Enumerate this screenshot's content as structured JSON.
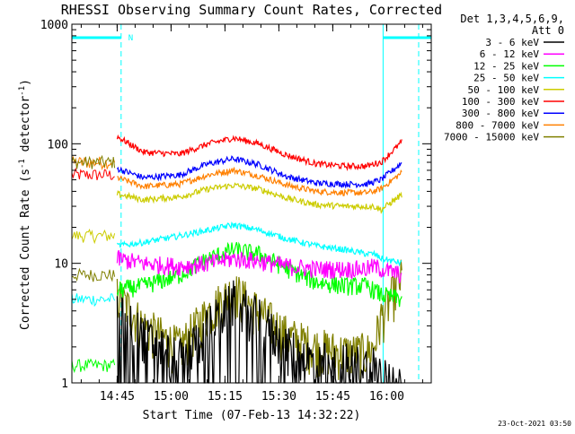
{
  "chart_data": {
    "type": "line",
    "title": "RHESSI Observing Summary Count Rates, Corrected",
    "xlabel": "Start Time (07-Feb-13 14:32:22)",
    "ylabel_main": "Corrected Count Rate (s",
    "ylabel_sup1": "-1",
    "ylabel_mid": " detector",
    "ylabel_sup2": "-1",
    "ylabel_end": ")",
    "y_scale": "log",
    "ylim": [
      1,
      1000
    ],
    "xlim_minutes": [
      0,
      100
    ],
    "x_start": "14:32:22",
    "x_ticks": [
      {
        "label": "14:45",
        "minute": 12.6
      },
      {
        "label": "15:00",
        "minute": 27.6
      },
      {
        "label": "15:15",
        "minute": 42.6
      },
      {
        "label": "15:30",
        "minute": 57.6
      },
      {
        "label": "15:45",
        "minute": 72.6
      },
      {
        "label": "16:00",
        "minute": 87.6
      }
    ],
    "y_ticks": [
      {
        "label": "1",
        "value": 1
      },
      {
        "label": "10",
        "value": 10
      },
      {
        "label": "100",
        "value": 100
      },
      {
        "label": "1000",
        "value": 1000
      }
    ],
    "legend_header_1": "Det 1,3,4,5,6,9,",
    "legend_header_2": "Att 0",
    "legend_position": "right",
    "night_marks": [
      {
        "start": 0,
        "end": 13.7,
        "label": "N"
      },
      {
        "start": 86.6,
        "end": 100,
        "label": ""
      }
    ],
    "series": [
      {
        "name": "3 - 6 keV",
        "color": "#000000",
        "x": [
          12.6,
          20,
          30,
          38,
          45,
          52,
          60,
          68,
          76,
          82,
          84,
          86,
          92
        ],
        "y": [
          4,
          2.5,
          1.6,
          3,
          5,
          3.5,
          2,
          1.5,
          1.5,
          1.4,
          1.5,
          1.2,
          1
        ]
      },
      {
        "name": "6 - 12 keV",
        "color": "#ff00ff",
        "x": [
          12.6,
          20,
          30,
          38,
          45,
          52,
          60,
          68,
          76,
          82,
          84,
          86,
          92
        ],
        "y": [
          11,
          10,
          9.5,
          10,
          11,
          10.5,
          9.5,
          9,
          9,
          9,
          9.5,
          9,
          8
        ]
      },
      {
        "name": "12 - 25 keV",
        "color": "#00ff00",
        "x": [
          12.6,
          20,
          30,
          38,
          45,
          52,
          60,
          68,
          76,
          82,
          84,
          86,
          92
        ],
        "y": [
          6,
          6.5,
          8,
          11,
          13,
          12,
          9,
          7,
          6.5,
          6.5,
          6,
          5.5,
          5
        ]
      },
      {
        "name": "25 - 50 keV",
        "color": "#00ffff",
        "x": [
          12.6,
          20,
          30,
          38,
          45,
          52,
          60,
          68,
          76,
          82,
          84,
          86,
          92
        ],
        "y": [
          14,
          15,
          17,
          19,
          21,
          19,
          16,
          14,
          13,
          12,
          12,
          11,
          10
        ]
      },
      {
        "name": "50 - 100 keV",
        "color": "#cccc00",
        "x": [
          12.6,
          20,
          30,
          38,
          45,
          52,
          60,
          68,
          76,
          82,
          84,
          86,
          92
        ],
        "y": [
          38,
          34,
          36,
          42,
          45,
          42,
          35,
          31,
          30,
          30,
          30,
          28,
          38
        ]
      },
      {
        "name": "100 - 300 keV",
        "color": "#ff0000",
        "x": [
          12.6,
          20,
          30,
          38,
          45,
          52,
          60,
          68,
          76,
          82,
          84,
          86,
          92
        ],
        "y": [
          115,
          85,
          82,
          100,
          112,
          100,
          80,
          68,
          65,
          65,
          68,
          70,
          105
        ]
      },
      {
        "name": "300 - 800 keV",
        "color": "#0000ff",
        "x": [
          12.6,
          20,
          30,
          38,
          45,
          52,
          60,
          68,
          76,
          82,
          84,
          86,
          92
        ],
        "y": [
          62,
          52,
          55,
          68,
          75,
          67,
          53,
          47,
          46,
          46,
          48,
          50,
          70
        ]
      },
      {
        "name": "800 - 7000 keV",
        "color": "#ff8000",
        "x": [
          12.6,
          20,
          30,
          38,
          45,
          52,
          60,
          68,
          76,
          82,
          84,
          86,
          92
        ],
        "y": [
          52,
          44,
          46,
          55,
          60,
          54,
          45,
          40,
          39,
          39,
          40,
          42,
          58
        ]
      },
      {
        "name": "7000 - 15000 keV",
        "color": "#808000",
        "x": [
          12.6,
          20,
          30,
          38,
          45,
          52,
          60,
          68,
          76,
          82,
          84,
          86,
          92
        ],
        "y": [
          5.5,
          3,
          2,
          4,
          6,
          4,
          2.5,
          2,
          1.8,
          1.8,
          2,
          3.5,
          8
        ]
      }
    ],
    "night_series": [
      {
        "color": "#ff0000",
        "x": [
          0,
          12
        ],
        "y": [
          55,
          55
        ]
      },
      {
        "color": "#ff8000",
        "x": [
          0,
          12
        ],
        "y": [
          70,
          70
        ]
      },
      {
        "color": "#808000",
        "x": [
          0,
          12
        ],
        "y": [
          70,
          70
        ]
      },
      {
        "color": "#cccc00",
        "x": [
          0,
          12
        ],
        "y": [
          17,
          17
        ]
      },
      {
        "color": "#808000",
        "x": [
          0,
          12
        ],
        "y": [
          8,
          8
        ]
      },
      {
        "color": "#00ffff",
        "x": [
          0,
          12
        ],
        "y": [
          5,
          5
        ]
      },
      {
        "color": "#00ff00",
        "x": [
          0,
          12
        ],
        "y": [
          1.4,
          1.4
        ]
      }
    ]
  },
  "footer": {
    "date_stamp": "23-Oct-2021 03:50"
  }
}
